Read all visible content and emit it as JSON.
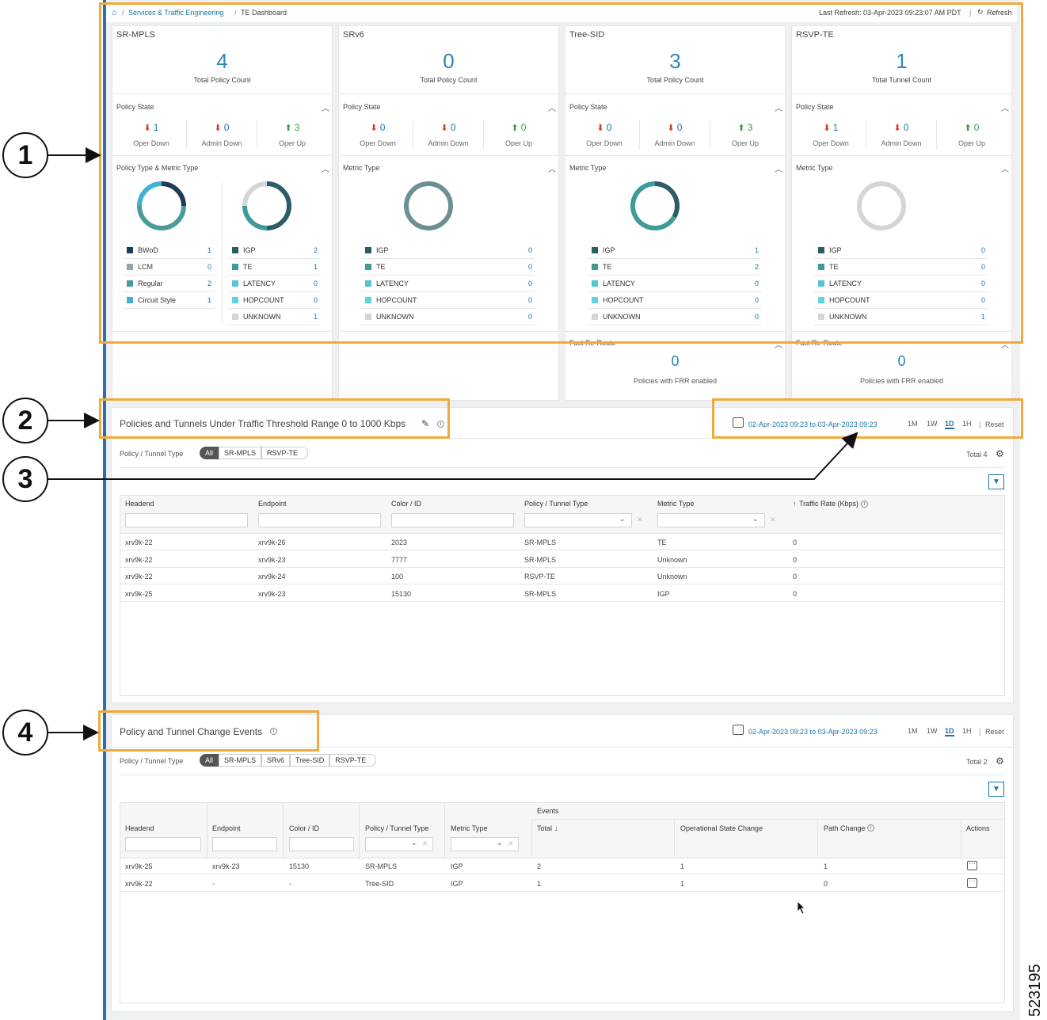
{
  "breadcrumb": {
    "home": "home-icon",
    "services": "Services & Traffic Engineering",
    "current": "TE Dashboard"
  },
  "header": {
    "last_refresh": "Last Refresh: 03-Apr-2023 09:23:07 AM PDT",
    "refresh": "Refresh"
  },
  "cards": [
    {
      "title": "SR-MPLS",
      "count": "4",
      "count_label": "Total Policy Count",
      "state_label": "Policy State",
      "oper_down": "1",
      "admin_down": "0",
      "oper_up": "3",
      "metric_label": "Policy Type & Metric Type"
    },
    {
      "title": "SRv6",
      "count": "0",
      "count_label": "Total Policy Count",
      "state_label": "Policy State",
      "oper_down": "0",
      "admin_down": "0",
      "oper_up": "0",
      "metric_label": "Metric Type"
    },
    {
      "title": "Tree-SID",
      "count": "3",
      "count_label": "Total Policy Count",
      "state_label": "Policy State",
      "oper_down": "0",
      "admin_down": "0",
      "oper_up": "3",
      "metric_label": "Metric Type",
      "frr_label": "Fast Re-Route",
      "frr_count": "0",
      "frr_text": "Policies with FRR enabled"
    },
    {
      "title": "RSVP-TE",
      "count": "1",
      "count_label": "Total Tunnel Count",
      "state_label": "Policy State",
      "oper_down": "1",
      "admin_down": "0",
      "oper_up": "0",
      "metric_label": "Metric Type",
      "frr_label": "Fast Re-Route",
      "frr_count": "0",
      "frr_text": "Policies with FRR enabled"
    }
  ],
  "state_labels": {
    "oper_down": "Oper Down",
    "admin_down": "Admin Down",
    "oper_up": "Oper Up"
  },
  "policy_types": [
    {
      "name": "BWoD",
      "value": "1",
      "color": "#1f3b55"
    },
    {
      "name": "LCM",
      "value": "0",
      "color": "#8fa6a8"
    },
    {
      "name": "Regular",
      "value": "2",
      "color": "#4a9a9e"
    },
    {
      "name": "Circuit Style",
      "value": "1",
      "color": "#3fb0d6"
    }
  ],
  "metric_names": [
    "IGP",
    "TE",
    "LATENCY",
    "HOPCOUNT",
    "UNKNOWN"
  ],
  "metric_colors": [
    "#2c5c66",
    "#3f9a9a",
    "#56c3d6",
    "#5fd3df",
    "#d3d6d8"
  ],
  "metric_values": [
    [
      "2",
      "1",
      "0",
      "0",
      "1"
    ],
    [
      "0",
      "0",
      "0",
      "0",
      "0"
    ],
    [
      "1",
      "2",
      "0",
      "0",
      "0"
    ],
    [
      "0",
      "0",
      "0",
      "0",
      "1"
    ]
  ],
  "traffic": {
    "title": "Policies and Tunnels Under Traffic Threshold Range 0 to 1000 Kbps",
    "range": "02-Apr-2023 09:23 to 03-Apr-2023 09:23",
    "ranges": [
      "1M",
      "1W",
      "1D",
      "1H"
    ],
    "reset": "Reset",
    "type_label": "Policy / Tunnel Type",
    "filters": [
      "All",
      "SR-MPLS",
      "RSVP-TE"
    ],
    "total": "Total 4",
    "columns": [
      "Headend",
      "Endpoint",
      "Color / ID",
      "Policy / Tunnel Type",
      "Metric Type",
      "Traffic Rate (Kbps)"
    ],
    "rows": [
      [
        "xrv9k-22",
        "xrv9k-26",
        "2023",
        "SR-MPLS",
        "TE",
        "0"
      ],
      [
        "xrv9k-22",
        "xrv9k-23",
        "7777",
        "SR-MPLS",
        "Unknown",
        "0"
      ],
      [
        "xrv9k-22",
        "xrv9k-24",
        "100",
        "RSVP-TE",
        "Unknown",
        "0"
      ],
      [
        "xrv9k-25",
        "xrv9k-23",
        "15130",
        "SR-MPLS",
        "IGP",
        "0"
      ]
    ]
  },
  "events": {
    "title": "Policy and Tunnel Change Events",
    "range": "02-Apr-2023 09:23 to 03-Apr-2023 09:23",
    "ranges": [
      "1M",
      "1W",
      "1D",
      "1H"
    ],
    "reset": "Reset",
    "type_label": "Policy / Tunnel Type",
    "filters": [
      "All",
      "SR-MPLS",
      "SRv6",
      "Tree-SID",
      "RSVP-TE"
    ],
    "total": "Total 2",
    "group": "Events",
    "columns": [
      "Headend",
      "Endpoint",
      "Color / ID",
      "Policy / Tunnel Type",
      "Metric Type",
      "Total",
      "Operational State Change",
      "Path Change",
      "Actions"
    ],
    "rows": [
      [
        "xrv9k-25",
        "xrv9k-23",
        "15130",
        "SR-MPLS",
        "IGP",
        "2",
        "1",
        "1"
      ],
      [
        "xrv9k-22",
        "-",
        "-",
        "Tree-SID",
        "IGP",
        "1",
        "1",
        "0"
      ]
    ]
  },
  "callouts": [
    "1",
    "2",
    "3",
    "4"
  ],
  "figure_id": "523195"
}
